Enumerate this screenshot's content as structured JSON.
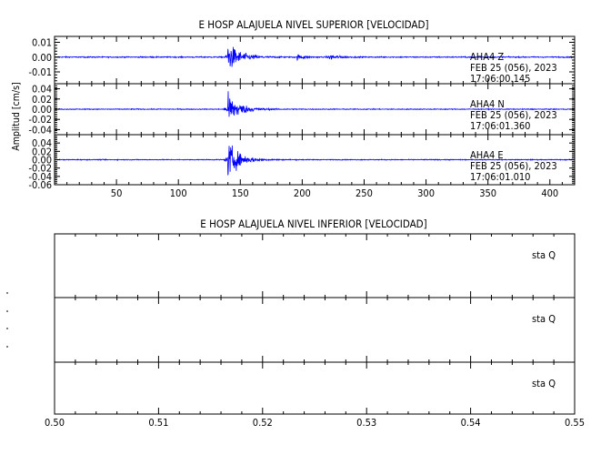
{
  "chart_data": [
    {
      "type": "line",
      "title": "E HOSP ALAJUELA NIVEL SUPERIOR [VELOCIDAD]",
      "ylabel": "Amplitud [cm/s]",
      "xlim": [
        0,
        420
      ],
      "x_ticks": [
        50,
        100,
        150,
        200,
        250,
        300,
        350,
        400
      ],
      "line_color": "#0000ff",
      "traces": [
        {
          "label": [
            "AHA4   Z",
            "FEB 25 (056), 2023",
            "17:06:00.145"
          ],
          "ylim": [
            -0.018,
            0.014
          ],
          "y_ticks": [
            0.01,
            0.0,
            -0.01
          ],
          "y_tick_labels": [
            "0.01",
            "0.00",
            "-0.01"
          ],
          "noise": 0.00045,
          "events": [
            {
              "t": 140,
              "amp": 0.013
            },
            {
              "t": 196,
              "amp": 0.0022
            },
            {
              "t": 222,
              "amp": 0.0027
            }
          ]
        },
        {
          "label": [
            "AHA4   N",
            "FEB 25 (056), 2023",
            "17:06:01.360"
          ],
          "ylim": [
            -0.05,
            0.05
          ],
          "y_ticks": [
            0.04,
            0.02,
            0.0,
            -0.02,
            -0.04
          ],
          "y_tick_labels": [
            "0.04",
            "0.02",
            "0.00",
            "-0.02",
            "-0.04"
          ],
          "noise": 0.001,
          "events": [
            {
              "t": 140,
              "amp": 0.042
            }
          ]
        },
        {
          "label": [
            "AHA4   E",
            "FEB 25 (056), 2023",
            "17:06:01.010"
          ],
          "ylim": [
            -0.06,
            0.06
          ],
          "y_ticks": [
            0.04,
            0.02,
            0.0,
            -0.02,
            -0.04,
            -0.06
          ],
          "y_tick_labels": [
            "0.04",
            "0.02",
            "0.00",
            "-0.02",
            "-0.04",
            "-0.06"
          ],
          "noise": 0.0012,
          "events": [
            {
              "t": 140,
              "amp": 0.055
            }
          ]
        }
      ]
    },
    {
      "type": "line",
      "title": "E HOSP ALAJUELA NIVEL INFERIOR [VELOCIDAD]",
      "xlim": [
        0.5,
        0.55
      ],
      "x_ticks": [
        0.5,
        0.51,
        0.52,
        0.53,
        0.54,
        0.55
      ],
      "x_tick_labels": [
        "0.50",
        "0.51",
        "0.52",
        "0.53",
        "0.54",
        "0.55"
      ],
      "traces": [
        {
          "label": "sta   Q"
        },
        {
          "label": "sta   Q"
        },
        {
          "label": "sta   Q"
        }
      ]
    }
  ]
}
